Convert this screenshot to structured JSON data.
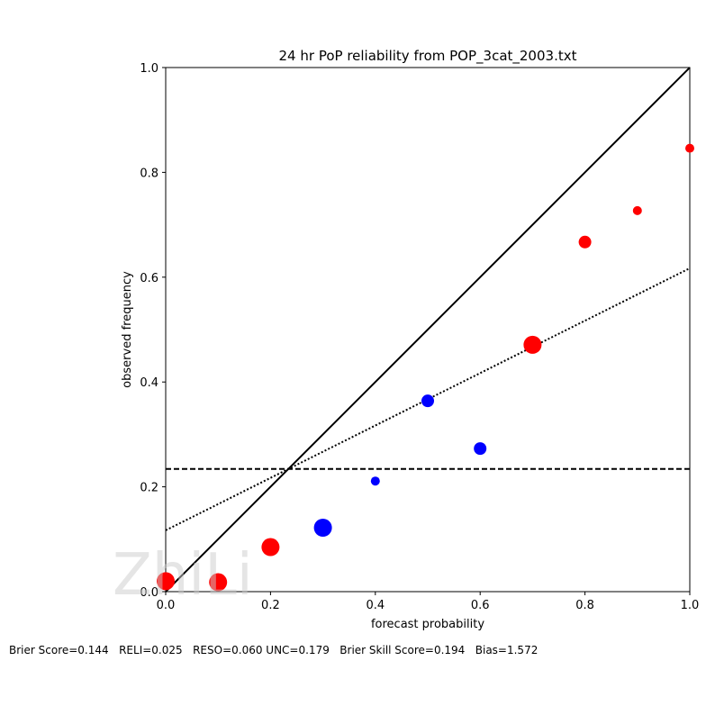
{
  "chart_data": {
    "type": "scatter",
    "title": "24 hr PoP reliability from POP_3cat_2003.txt",
    "xlabel": "forecast probability",
    "ylabel": "observed frequency",
    "xlim": [
      0.0,
      1.0
    ],
    "ylim": [
      0.0,
      1.0
    ],
    "xticks": [
      "0.0",
      "0.2",
      "0.4",
      "0.6",
      "0.8",
      "1.0"
    ],
    "yticks": [
      "0.0",
      "0.2",
      "0.4",
      "0.6",
      "0.8",
      "1.0"
    ],
    "grid": false,
    "points": [
      {
        "x": 0.0,
        "y": 0.02,
        "color": "#ff0000",
        "size": "large"
      },
      {
        "x": 0.1,
        "y": 0.018,
        "color": "#ff0000",
        "size": "large"
      },
      {
        "x": 0.2,
        "y": 0.085,
        "color": "#ff0000",
        "size": "large"
      },
      {
        "x": 0.3,
        "y": 0.122,
        "color": "#0000ff",
        "size": "large"
      },
      {
        "x": 0.4,
        "y": 0.211,
        "color": "#0000ff",
        "size": "small"
      },
      {
        "x": 0.5,
        "y": 0.364,
        "color": "#0000ff",
        "size": "medium"
      },
      {
        "x": 0.6,
        "y": 0.273,
        "color": "#0000ff",
        "size": "medium"
      },
      {
        "x": 0.7,
        "y": 0.471,
        "color": "#ff0000",
        "size": "large"
      },
      {
        "x": 0.8,
        "y": 0.667,
        "color": "#ff0000",
        "size": "medium"
      },
      {
        "x": 0.9,
        "y": 0.727,
        "color": "#ff0000",
        "size": "small"
      },
      {
        "x": 1.0,
        "y": 0.846,
        "color": "#ff0000",
        "size": "small"
      }
    ],
    "reference_lines": [
      {
        "name": "perfect reliability",
        "style": "solid",
        "from": [
          0.0,
          0.0
        ],
        "to": [
          1.0,
          1.0
        ]
      },
      {
        "name": "climatology",
        "style": "dashed",
        "from": [
          0.0,
          0.234
        ],
        "to": [
          1.0,
          0.234
        ]
      },
      {
        "name": "no skill",
        "style": "dotted",
        "from": [
          0.0,
          0.117
        ],
        "to": [
          1.0,
          0.617
        ]
      }
    ]
  },
  "footer": {
    "scores": "Brier Score=0.144   RELI=0.025   RESO=0.060 UNC=0.179   Brier Skill Score=0.194   Bias=1.572"
  },
  "watermark": {
    "text": "ZhiLi"
  }
}
